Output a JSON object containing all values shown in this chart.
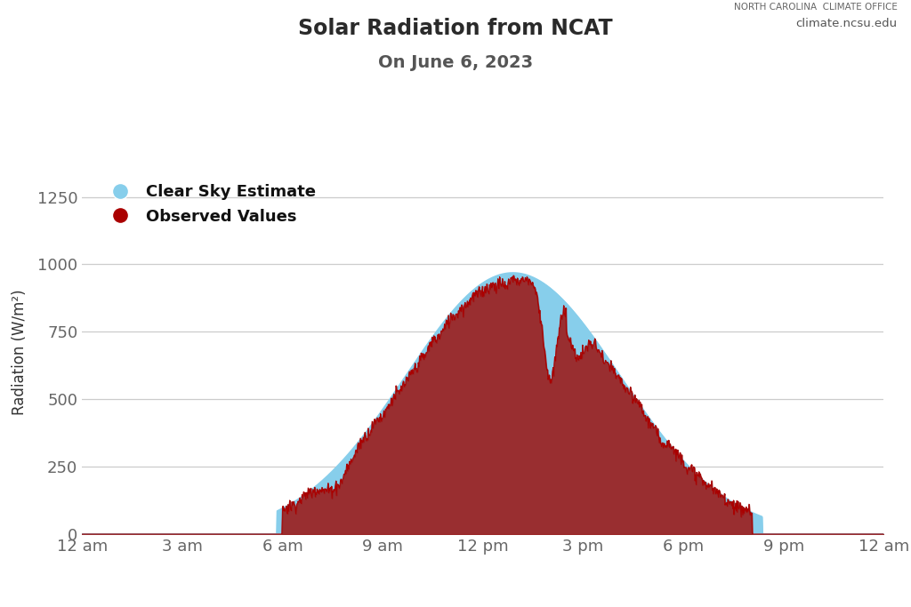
{
  "title_line1": "Solar Radiation from NCAT",
  "title_line2": "On June 6, 2023",
  "ylabel": "Radiation (W/m²)",
  "x_tick_labels": [
    "12 am",
    "3 am",
    "6 am",
    "9 am",
    "12 pm",
    "3 pm",
    "6 pm",
    "9 pm",
    "12 am"
  ],
  "x_tick_positions": [
    0,
    3,
    6,
    9,
    12,
    15,
    18,
    21,
    24
  ],
  "ylim": [
    0,
    1350
  ],
  "xlim": [
    0,
    24
  ],
  "yticks": [
    0,
    250,
    500,
    750,
    1000,
    1250
  ],
  "clear_sky_color": "#87CEEB",
  "observed_color": "#AA0000",
  "observed_fill_color": "#9B2020",
  "background_color": "#ffffff",
  "grid_color": "#cccccc",
  "nc_state_bg": "#CC0000",
  "title_color": "#2a2a2a",
  "subtitle_color": "#555555",
  "legend_label_clear": "Clear Sky Estimate",
  "legend_label_observed": "Observed Values",
  "sunrise_hour": 5.85,
  "sunset_hour": 20.35,
  "clear_sky_peak": 968,
  "clear_sky_peak_hour": 12.9,
  "clear_sky_sigma": 3.2
}
